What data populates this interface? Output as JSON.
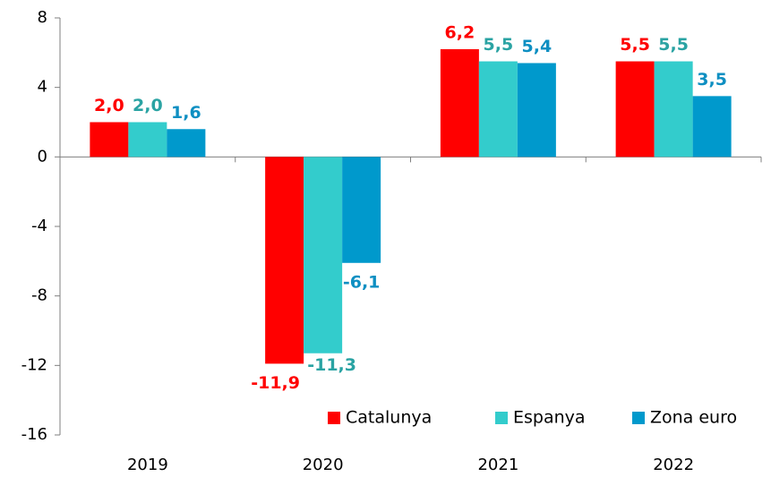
{
  "chart_data": {
    "type": "bar",
    "categories": [
      "2019",
      "2020",
      "2021",
      "2022"
    ],
    "series": [
      {
        "name": "Catalunya",
        "color": "#ff0000",
        "label_color": "#ff0000",
        "values": [
          2.0,
          -11.9,
          6.2,
          5.5
        ],
        "value_labels": [
          "2,0",
          "-11,9",
          "6,2",
          "5,5"
        ]
      },
      {
        "name": "Espanya",
        "color": "#33cccc",
        "label_color": "#2aa3a3",
        "values": [
          2.0,
          -11.3,
          5.5,
          5.5
        ],
        "value_labels": [
          "2,0",
          "-11,3",
          "5,5",
          "5,5"
        ]
      },
      {
        "name": "Zona euro",
        "color": "#0099cc",
        "label_color": "#0e8fc2",
        "values": [
          1.6,
          -6.1,
          5.4,
          3.5
        ],
        "value_labels": [
          "1,6",
          "-6,1",
          "5,4",
          "3,5"
        ]
      }
    ],
    "ylim": [
      -16,
      8
    ],
    "yticks": [
      8,
      4,
      0,
      -4,
      -8,
      -12,
      -16
    ],
    "grid": false,
    "legend": "bottom-right"
  }
}
